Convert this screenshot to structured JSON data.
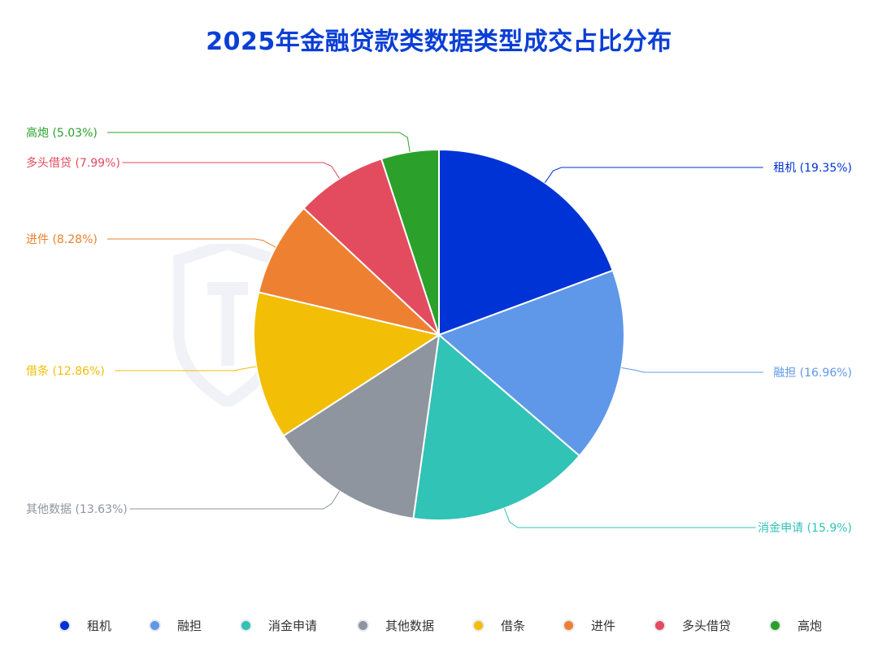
{
  "title": "2025年金融贷款类数据类型成交占比分布",
  "watermark_label": "威胁猎人 THREAT HUNTER",
  "chart_data": {
    "type": "pie",
    "title": "2025年金融贷款类数据类型成交占比分布",
    "legend_position": "bottom",
    "slices": [
      {
        "name": "租机",
        "value": 19.35,
        "label": "租机 (19.35%)",
        "color": "#0033d6"
      },
      {
        "name": "融担",
        "value": 16.96,
        "label": "融担 (16.96%)",
        "color": "#5f98e8"
      },
      {
        "name": "消金申请",
        "value": 15.9,
        "label": "消金申请 (15.9%)",
        "color": "#31c3b5"
      },
      {
        "name": "其他数据",
        "value": 13.63,
        "label": "其他数据 (13.63%)",
        "color": "#8e959f"
      },
      {
        "name": "借条",
        "value": 12.86,
        "label": "借条 (12.86%)",
        "color": "#f2be06"
      },
      {
        "name": "进件",
        "value": 8.28,
        "label": "进件 (8.28%)",
        "color": "#ee8131"
      },
      {
        "name": "多头借贷",
        "value": 7.99,
        "label": "多头借贷 (7.99%)",
        "color": "#e34b5f"
      },
      {
        "name": "高炮",
        "value": 5.03,
        "label": "高炮 (5.03%)",
        "color": "#2ba02b"
      }
    ]
  },
  "legend": {
    "items": [
      {
        "label": "租机",
        "color": "#0033d6"
      },
      {
        "label": "融担",
        "color": "#5f98e8"
      },
      {
        "label": "消金申请",
        "color": "#31c3b5"
      },
      {
        "label": "其他数据",
        "color": "#8e959f"
      },
      {
        "label": "借条",
        "color": "#f2be06"
      },
      {
        "label": "进件",
        "color": "#ee8131"
      },
      {
        "label": "多头借贷",
        "color": "#e34b5f"
      },
      {
        "label": "高炮",
        "color": "#2ba02b"
      }
    ]
  }
}
